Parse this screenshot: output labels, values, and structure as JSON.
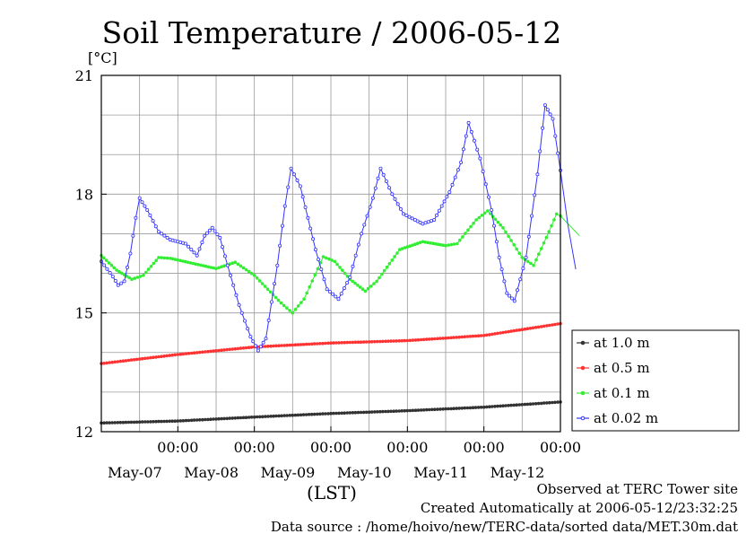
{
  "title": "Soil Temperature / 2006-05-12",
  "unit_label": "[°C]",
  "xlabel": "(LST)",
  "notes": [
    "Observed at TERC Tower site",
    "Created Automatically at 2006-05-12/23:32:25",
    "Data source : /home/hoivo/new/TERC-data/sorted  data/MET.30m.dat"
  ],
  "chart_data": {
    "type": "line",
    "title": "Soil Temperature / 2006-05-12",
    "xlabel": "(LST)",
    "ylabel": "[°C]",
    "x_unit": "day (May 2006, LST)",
    "xlim": [
      6.0,
      12.0
    ],
    "ylim": [
      12,
      21
    ],
    "yticks": [
      12,
      15,
      18,
      21
    ],
    "y_minor_step": 1,
    "grid": true,
    "legend_position": "bottom-right, outside plot",
    "x_major_ticks": [
      {
        "x": 7.0,
        "time": "00:00",
        "date": "May-07"
      },
      {
        "x": 8.0,
        "time": "00:00",
        "date": "May-08"
      },
      {
        "x": 9.0,
        "time": "00:00",
        "date": "May-09"
      },
      {
        "x": 10.0,
        "time": "00:00",
        "date": "May-10"
      },
      {
        "x": 11.0,
        "time": "00:00",
        "date": "May-11"
      },
      {
        "x": 12.0,
        "time": "00:00",
        "date": "May-12"
      }
    ],
    "x_grid": [
      6.5,
      7.0,
      7.5,
      8.0,
      8.5,
      9.0,
      9.5,
      10.0,
      10.5,
      11.0,
      11.5
    ],
    "series": [
      {
        "name": "at 1.0 m",
        "color": "#333333",
        "points": [
          [
            6.0,
            12.22
          ],
          [
            7.0,
            12.27
          ],
          [
            8.0,
            12.37
          ],
          [
            9.0,
            12.46
          ],
          [
            10.0,
            12.53
          ],
          [
            11.0,
            12.62
          ],
          [
            12.0,
            12.75
          ]
        ]
      },
      {
        "name": "at 0.5 m",
        "color": "#ff3333",
        "points": [
          [
            6.0,
            13.72
          ],
          [
            7.0,
            13.95
          ],
          [
            8.0,
            14.14
          ],
          [
            9.0,
            14.24
          ],
          [
            10.0,
            14.3
          ],
          [
            11.0,
            14.43
          ],
          [
            12.0,
            14.73
          ]
        ]
      },
      {
        "name": "at 0.1 m",
        "color": "#33ee33",
        "points": [
          [
            6.0,
            16.45
          ],
          [
            6.2,
            16.08
          ],
          [
            6.4,
            15.85
          ],
          [
            6.55,
            15.95
          ],
          [
            6.75,
            16.4
          ],
          [
            6.9,
            16.38
          ],
          [
            7.2,
            16.25
          ],
          [
            7.5,
            16.12
          ],
          [
            7.75,
            16.28
          ],
          [
            8.0,
            15.95
          ],
          [
            8.35,
            15.25
          ],
          [
            8.5,
            15.0
          ],
          [
            8.65,
            15.35
          ],
          [
            8.9,
            16.42
          ],
          [
            9.05,
            16.3
          ],
          [
            9.25,
            15.85
          ],
          [
            9.45,
            15.55
          ],
          [
            9.6,
            15.8
          ],
          [
            9.9,
            16.6
          ],
          [
            10.2,
            16.8
          ],
          [
            10.5,
            16.7
          ],
          [
            10.65,
            16.75
          ],
          [
            10.9,
            17.35
          ],
          [
            11.05,
            17.58
          ],
          [
            11.25,
            17.15
          ],
          [
            11.5,
            16.4
          ],
          [
            11.65,
            16.2
          ],
          [
            11.85,
            17.05
          ],
          [
            11.95,
            17.5
          ],
          [
            12.0,
            17.45
          ],
          [
            12.25,
            16.95
          ]
        ]
      },
      {
        "name": "at 0.02 m",
        "color": "#3333ff",
        "points": [
          [
            6.0,
            16.3
          ],
          [
            6.15,
            15.92
          ],
          [
            6.22,
            15.7
          ],
          [
            6.3,
            15.8
          ],
          [
            6.38,
            16.5
          ],
          [
            6.45,
            17.4
          ],
          [
            6.5,
            17.9
          ],
          [
            6.6,
            17.6
          ],
          [
            6.75,
            17.05
          ],
          [
            6.9,
            16.85
          ],
          [
            7.1,
            16.75
          ],
          [
            7.25,
            16.45
          ],
          [
            7.35,
            16.95
          ],
          [
            7.45,
            17.15
          ],
          [
            7.55,
            16.9
          ],
          [
            7.65,
            16.2
          ],
          [
            7.8,
            15.2
          ],
          [
            7.95,
            14.4
          ],
          [
            8.05,
            14.05
          ],
          [
            8.15,
            14.35
          ],
          [
            8.3,
            16.2
          ],
          [
            8.4,
            17.7
          ],
          [
            8.48,
            18.65
          ],
          [
            8.6,
            18.2
          ],
          [
            8.8,
            16.6
          ],
          [
            8.95,
            15.6
          ],
          [
            9.1,
            15.35
          ],
          [
            9.25,
            15.9
          ],
          [
            9.4,
            17.0
          ],
          [
            9.55,
            17.9
          ],
          [
            9.65,
            18.65
          ],
          [
            9.8,
            18.0
          ],
          [
            9.95,
            17.5
          ],
          [
            10.1,
            17.35
          ],
          [
            10.2,
            17.25
          ],
          [
            10.35,
            17.35
          ],
          [
            10.55,
            18.05
          ],
          [
            10.7,
            18.8
          ],
          [
            10.8,
            19.8
          ],
          [
            10.95,
            18.9
          ],
          [
            11.1,
            17.6
          ],
          [
            11.2,
            16.4
          ],
          [
            11.3,
            15.5
          ],
          [
            11.4,
            15.3
          ],
          [
            11.55,
            16.4
          ],
          [
            11.7,
            18.5
          ],
          [
            11.8,
            20.25
          ],
          [
            11.9,
            19.9
          ],
          [
            12.0,
            18.6
          ],
          [
            12.1,
            17.2
          ],
          [
            12.2,
            16.1
          ]
        ]
      }
    ]
  }
}
